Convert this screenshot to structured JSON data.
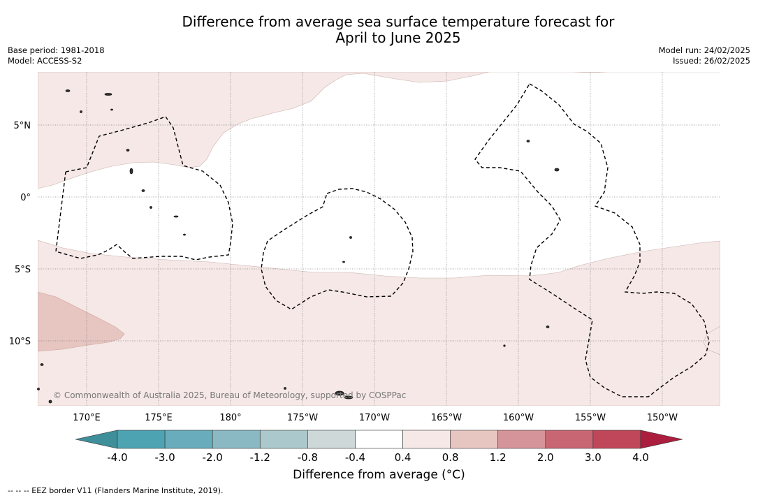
{
  "title_line1": "Difference from average sea surface temperature forecast for",
  "title_line2": "April to June 2025",
  "meta_left": {
    "base_period": "Base period: 1981-2018",
    "model": "Model: ACCESS-S2"
  },
  "meta_right": {
    "model_run": "Model run: 24/02/2025",
    "issued": "Issued: 26/02/2025"
  },
  "lat_labels": [
    "5°N",
    "0°",
    "5°S",
    "10°S"
  ],
  "lon_labels": [
    "170°E",
    "175°E",
    "180°",
    "175°W",
    "170°W",
    "165°W",
    "160°W",
    "155°W",
    "150°W"
  ],
  "copyright": "© Commonwealth of Australia 2025, Bureau of Meteorology, supported by COSPPac",
  "colorbar": {
    "tick_labels": [
      "-4.0",
      "-3.0",
      "-2.0",
      "-1.2",
      "-0.8",
      "-0.4",
      "0.4",
      "0.8",
      "1.2",
      "2.0",
      "3.0",
      "4.0"
    ],
    "colors": [
      "#3f8f9a",
      "#4ea3b2",
      "#69acbb",
      "#8ab9c3",
      "#abc9cc",
      "#ced8d8",
      "#ffffff",
      "#f6e8e6",
      "#e7c6c1",
      "#d5949a",
      "#c96673",
      "#bf4759",
      "#ac1e3d"
    ],
    "label": "Difference from average (°C)"
  },
  "footnote": "--  --  -- EEZ border V11 (Flanders Marine Institute, 2019)."
}
